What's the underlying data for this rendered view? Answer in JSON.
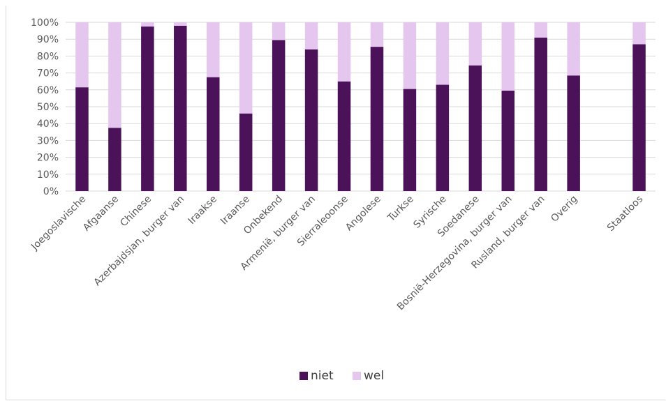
{
  "chart_data": {
    "type": "bar",
    "stacked": true,
    "title": "",
    "xlabel": "",
    "ylabel": "",
    "ylim": [
      0,
      100
    ],
    "y_ticks": [
      "0%",
      "10%",
      "20%",
      "30%",
      "40%",
      "50%",
      "60%",
      "70%",
      "80%",
      "90%",
      "100%"
    ],
    "grid": true,
    "legend_position": "bottom",
    "categories": [
      "Joegoslavische",
      "Afgaanse",
      "Chinese",
      "Azerbajdsjan, burger van",
      "Iraakse",
      "Iraanse",
      "Onbekend",
      "Armenië, burger van",
      "Sierraleoonse",
      "Angolese",
      "Turkse",
      "Syrische",
      "Soedanese",
      "Bosnië-Herzegovina, burger van",
      "Rusland, burger van",
      "Overig",
      "",
      "Staatloos"
    ],
    "series": [
      {
        "name": "niet",
        "color": "#4b1259",
        "values": [
          61.5,
          37.5,
          97.5,
          98,
          67.5,
          46,
          89.5,
          84,
          65,
          85.5,
          60.5,
          63,
          74.5,
          59.5,
          91,
          68.5,
          null,
          87
        ]
      },
      {
        "name": "wel",
        "color": "#e5c6ef",
        "values": [
          38.5,
          62.5,
          2.5,
          2,
          32.5,
          54,
          10.5,
          16,
          35,
          14.5,
          39.5,
          37,
          25.5,
          40.5,
          9,
          31.5,
          null,
          13
        ]
      }
    ]
  }
}
